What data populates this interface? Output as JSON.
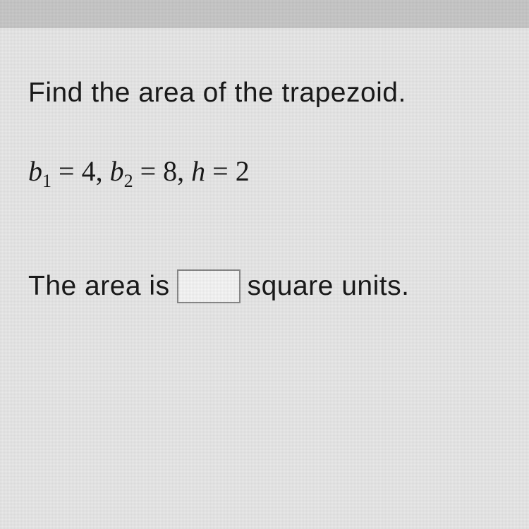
{
  "problem": {
    "instruction": "Find the area of the trapezoid.",
    "given": {
      "b1_var": "b",
      "b1_sub": "1",
      "b1_val": "4",
      "b2_var": "b",
      "b2_sub": "2",
      "b2_val": "8",
      "h_var": "h",
      "h_val": "2"
    },
    "answer_prefix": "The area is",
    "answer_suffix": "square units.",
    "answer_value": ""
  },
  "colors": {
    "background": "#d4d4d4",
    "content_bg": "#e8e8e8",
    "topbar": "#c8c8c8",
    "text": "#1a1a1a",
    "input_border": "#888888",
    "input_bg": "#f5f5f5"
  }
}
